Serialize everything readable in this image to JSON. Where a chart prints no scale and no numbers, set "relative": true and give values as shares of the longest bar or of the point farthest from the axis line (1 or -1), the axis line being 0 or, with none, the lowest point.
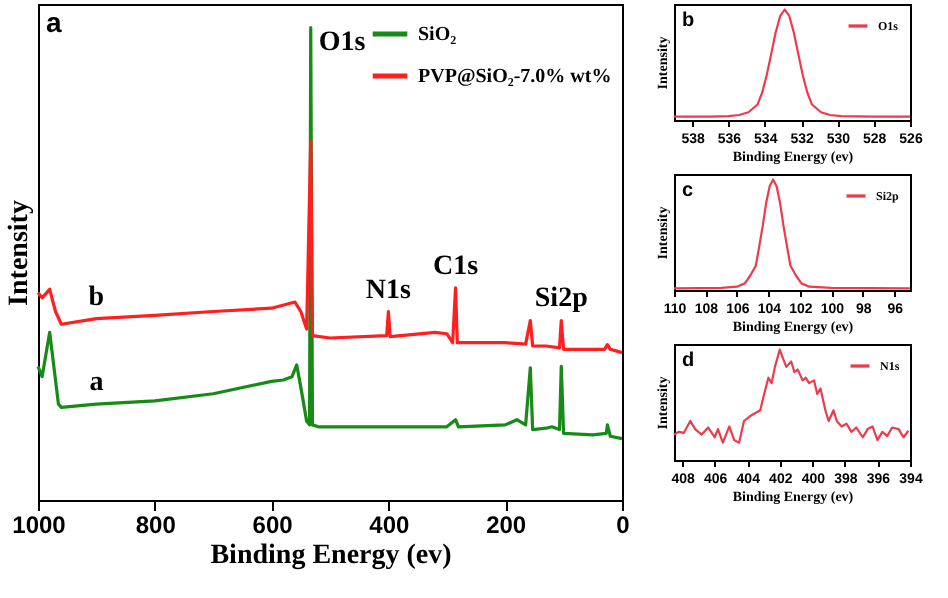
{
  "chart_data": [
    {
      "type": "line",
      "relative": true,
      "xlabel": "Binding Energy (ev)",
      "ylabel": "Intensity",
      "legend": "top right",
      "xlim": [
        1000,
        0
      ],
      "xticks": [
        1000,
        800,
        600,
        400,
        200,
        0
      ],
      "annotations": [
        "a",
        {
          "text": "O1s",
          "x": 533,
          "y": 1.0
        },
        {
          "text": "N1s",
          "x": 400,
          "y": 0.399
        },
        {
          "text": "C1s",
          "x": 285,
          "y": 0.449
        },
        {
          "text": "Si2p",
          "x": 104,
          "y": 0.38
        },
        {
          "text": "b",
          "x": 900,
          "y": 0.384
        },
        {
          "text": "a",
          "x": 900,
          "y": 0.203
        }
      ],
      "series": [
        {
          "name": "SiO₂",
          "color": "#178a17",
          "x": [
            1000,
            993,
            980,
            965,
            960,
            900,
            800,
            700,
            600,
            580,
            565,
            557,
            550,
            540,
            535,
            533,
            530,
            520,
            400,
            300,
            285,
            280,
            200,
            180,
            165,
            157,
            153,
            130,
            120,
            107,
            104,
            100,
            50,
            27,
            25,
            20,
            0
          ],
          "values": [
            0.283,
            0.261,
            0.355,
            0.203,
            0.196,
            0.203,
            0.21,
            0.225,
            0.251,
            0.254,
            0.261,
            0.286,
            0.239,
            0.167,
            0.159,
            1.0,
            0.159,
            0.155,
            0.155,
            0.155,
            0.17,
            0.155,
            0.159,
            0.17,
            0.159,
            0.28,
            0.149,
            0.152,
            0.155,
            0.149,
            0.283,
            0.141,
            0.138,
            0.141,
            0.159,
            0.135,
            0.13
          ]
        },
        {
          "name": "PVP@SiO₂-7.0% wt%",
          "color": "#ff1f1f",
          "x": [
            1000,
            993,
            980,
            970,
            960,
            900,
            800,
            700,
            600,
            560,
            550,
            540,
            533,
            530,
            500,
            403,
            400,
            397,
            320,
            300,
            290,
            285,
            282,
            200,
            165,
            157,
            153,
            130,
            107,
            104,
            100,
            30,
            25,
            20,
            0
          ],
          "values": [
            0.439,
            0.428,
            0.446,
            0.399,
            0.372,
            0.384,
            0.391,
            0.399,
            0.406,
            0.419,
            0.399,
            0.362,
            0.761,
            0.348,
            0.343,
            0.348,
            0.399,
            0.346,
            0.355,
            0.352,
            0.333,
            0.449,
            0.333,
            0.333,
            0.33,
            0.38,
            0.326,
            0.326,
            0.322,
            0.38,
            0.319,
            0.319,
            0.329,
            0.319,
            0.312
          ]
        }
      ]
    },
    {
      "type": "line",
      "relative": true,
      "xlabel": "Binding Energy (ev)",
      "ylabel": "Intensity",
      "legend": "top right",
      "xlim": [
        539,
        526
      ],
      "xticks": [
        538,
        536,
        534,
        532,
        530,
        528,
        526
      ],
      "annotations": [
        "b"
      ],
      "series": [
        {
          "name": "O1s",
          "color": "#ee3b4c",
          "x": [
            539,
            537,
            536,
            535.4,
            534.9,
            534.4,
            534.15,
            533.9,
            533.65,
            533.4,
            533.15,
            532.9,
            532.65,
            532.4,
            532.15,
            531.9,
            531.65,
            531.4,
            530.9,
            530.4,
            529.8,
            528,
            526
          ],
          "values": [
            0.03,
            0.03,
            0.035,
            0.045,
            0.07,
            0.14,
            0.245,
            0.4,
            0.594,
            0.792,
            0.942,
            1.0,
            0.942,
            0.792,
            0.594,
            0.4,
            0.245,
            0.14,
            0.07,
            0.045,
            0.035,
            0.03,
            0.03
          ]
        }
      ]
    },
    {
      "type": "line",
      "relative": true,
      "xlabel": "Binding Energy (ev)",
      "ylabel": "Intensity",
      "legend": "top right",
      "xlim": [
        110,
        95
      ],
      "xticks": [
        110,
        108,
        106,
        104,
        102,
        100,
        98,
        96
      ],
      "annotations": [
        "c"
      ],
      "series": [
        {
          "name": "Si2p",
          "color": "#ee3b4c",
          "x": [
            110,
            107,
            106,
            105.5,
            105.2,
            104.8,
            104.6,
            104.36,
            104.14,
            103.92,
            103.7,
            103.48,
            103.26,
            103.04,
            102.8,
            102.6,
            102.2,
            101.9,
            101.4,
            100,
            95
          ],
          "values": [
            0.015,
            0.02,
            0.03,
            0.06,
            0.12,
            0.22,
            0.38,
            0.58,
            0.79,
            0.94,
            1.0,
            0.94,
            0.79,
            0.58,
            0.38,
            0.22,
            0.12,
            0.06,
            0.03,
            0.02,
            0.015
          ]
        }
      ]
    },
    {
      "type": "line",
      "relative": true,
      "xlabel": "Binding Energy (ev)",
      "ylabel": "Intensity",
      "legend": "top right",
      "xlim": [
        408.5,
        394
      ],
      "xticks": [
        408,
        406,
        404,
        402,
        400,
        398,
        396,
        394
      ],
      "annotations": [
        "d"
      ],
      "series": [
        {
          "name": "N1s",
          "color": "#ee3b4c",
          "x": [
            408.5,
            408.2,
            407.9,
            407.5,
            407.2,
            406.8,
            406.4,
            406.0,
            405.8,
            405.5,
            405.1,
            404.8,
            404.5,
            404.2,
            403.8,
            403.5,
            403.2,
            403.0,
            402.7,
            402.5,
            402.3,
            402.0,
            401.8,
            401.6,
            401.3,
            401.1,
            400.9,
            400.6,
            400.4,
            400.2,
            399.9,
            399.7,
            399.5,
            399.2,
            399.0,
            398.7,
            398.5,
            398.2,
            397.9,
            397.6,
            397.3,
            396.9,
            396.6,
            396.3,
            396.0,
            395.7,
            395.4,
            395.1,
            394.7,
            394.4,
            394.1
          ],
          "values": [
            0.23,
            0.255,
            0.245,
            0.353,
            0.28,
            0.23,
            0.294,
            0.206,
            0.28,
            0.157,
            0.304,
            0.18,
            0.157,
            0.353,
            0.4,
            0.426,
            0.45,
            0.574,
            0.745,
            0.696,
            0.843,
            1.0,
            0.917,
            0.843,
            0.892,
            0.794,
            0.819,
            0.721,
            0.745,
            0.696,
            0.721,
            0.598,
            0.647,
            0.45,
            0.353,
            0.45,
            0.353,
            0.304,
            0.328,
            0.255,
            0.294,
            0.206,
            0.28,
            0.304,
            0.18,
            0.255,
            0.216,
            0.294,
            0.28,
            0.206,
            0.265
          ]
        }
      ]
    }
  ]
}
